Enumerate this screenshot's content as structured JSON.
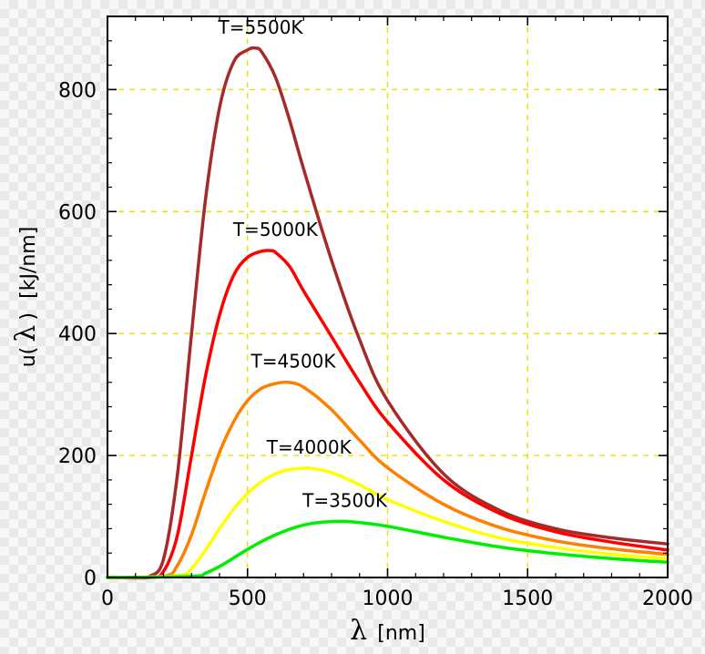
{
  "chart_data": {
    "type": "line",
    "xlabel_symbol": "λ",
    "xlabel_unit": "[nm]",
    "ylabel_prefix": "u(",
    "ylabel_symbol": "λ",
    "ylabel_suffix": ")",
    "ylabel_unit": "[kJ/nm]",
    "xlim": [
      0,
      2000
    ],
    "ylim": [
      0,
      920
    ],
    "x_ticks": [
      0,
      500,
      1000,
      1500,
      2000
    ],
    "y_ticks": [
      0,
      200,
      400,
      600,
      800
    ],
    "x_tick_labels": [
      "0",
      "500",
      "1000",
      "1500",
      "2000"
    ],
    "y_tick_labels": [
      "0",
      "200",
      "400",
      "600",
      "800"
    ],
    "grid": "dashed-yellow",
    "series": [
      {
        "name": "T=5500K",
        "color": "#a52a2a",
        "x": [
          0,
          100,
          150,
          200,
          250,
          300,
          350,
          400,
          450,
          500,
          527,
          550,
          600,
          650,
          700,
          800,
          900,
          1000,
          1200,
          1400,
          1600,
          1800,
          2000
        ],
        "y": [
          0,
          0,
          2,
          30,
          170,
          400,
          620,
          770,
          845,
          865,
          868,
          862,
          820,
          750,
          670,
          520,
          390,
          290,
          170,
          110,
          80,
          65,
          55
        ]
      },
      {
        "name": "T=5000K",
        "color": "#ff0000",
        "x": [
          0,
          150,
          200,
          250,
          300,
          350,
          400,
          450,
          500,
          550,
          580,
          600,
          650,
          700,
          800,
          900,
          1000,
          1200,
          1400,
          1600,
          1800,
          2000
        ],
        "y": [
          0,
          0,
          10,
          70,
          200,
          330,
          430,
          495,
          525,
          535,
          536,
          533,
          510,
          470,
          395,
          320,
          255,
          160,
          105,
          75,
          58,
          45
        ]
      },
      {
        "name": "T=4500K",
        "color": "#ff7f00",
        "x": [
          0,
          200,
          250,
          300,
          350,
          400,
          450,
          500,
          550,
          600,
          644,
          700,
          800,
          900,
          1000,
          1200,
          1400,
          1600,
          1800,
          2000
        ],
        "y": [
          0,
          2,
          20,
          70,
          140,
          205,
          255,
          290,
          310,
          318,
          320,
          312,
          275,
          225,
          180,
          120,
          82,
          60,
          47,
          38
        ]
      },
      {
        "name": "T=4000K",
        "color": "#ffff00",
        "x": [
          0,
          250,
          300,
          350,
          400,
          450,
          500,
          550,
          600,
          650,
          700,
          724,
          800,
          900,
          1000,
          1200,
          1400,
          1600,
          1800,
          2000
        ],
        "y": [
          0,
          3,
          15,
          45,
          80,
          112,
          138,
          157,
          170,
          177,
          179,
          179,
          172,
          152,
          128,
          92,
          65,
          49,
          38,
          31
        ]
      },
      {
        "name": "T=3500K",
        "color": "#00ee00",
        "x": [
          0,
          300,
          350,
          400,
          450,
          500,
          550,
          600,
          650,
          700,
          750,
          828,
          900,
          1000,
          1200,
          1400,
          1600,
          1800,
          2000
        ],
        "y": [
          0,
          2,
          7,
          18,
          32,
          46,
          59,
          70,
          79,
          86,
          90,
          92,
          90,
          84,
          66,
          50,
          39,
          31,
          25
        ]
      }
    ]
  }
}
